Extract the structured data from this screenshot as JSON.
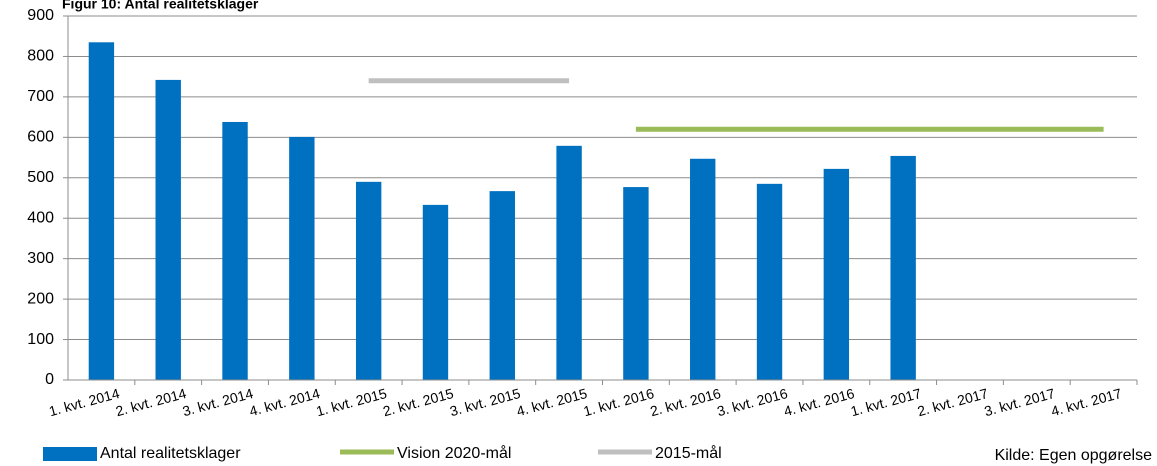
{
  "chart_data": {
    "type": "bar",
    "title": "Figur 10: Antal realitetsklager",
    "categories": [
      "1. kvt. 2014",
      "2. kvt. 2014",
      "3. kvt. 2014",
      "4. kvt. 2014",
      "1. kvt. 2015",
      "2. kvt. 2015",
      "3. kvt. 2015",
      "4. kvt. 2015",
      "1. kvt. 2016",
      "2. kvt. 2016",
      "3. kvt. 2016",
      "4. kvt. 2016",
      "1. kvt. 2017",
      "2. kvt. 2017",
      "3. kvt. 2017",
      "4. kvt. 2017"
    ],
    "series": [
      {
        "name": "Antal realitetsklager",
        "type": "bar",
        "color": "#0070c0",
        "values": [
          835,
          742,
          638,
          601,
          490,
          433,
          467,
          579,
          477,
          547,
          485,
          522,
          554,
          null,
          null,
          null
        ]
      },
      {
        "name": "Vision 2020-mål",
        "type": "line",
        "color": "#9bbb59",
        "values": [
          null,
          null,
          null,
          null,
          null,
          null,
          null,
          null,
          620,
          620,
          620,
          620,
          620,
          620,
          620,
          620
        ]
      },
      {
        "name": "2015-mål",
        "type": "line",
        "color": "#bfbfbf",
        "values": [
          null,
          null,
          null,
          null,
          740,
          740,
          740,
          740,
          null,
          null,
          null,
          null,
          null,
          null,
          null,
          null
        ]
      }
    ],
    "ylim": [
      0,
      900
    ],
    "yticks": [
      0,
      100,
      200,
      300,
      400,
      500,
      600,
      700,
      800,
      900
    ],
    "grid": true,
    "legend": "bottom",
    "annotation": "Kilde: Egen opgørelse"
  }
}
